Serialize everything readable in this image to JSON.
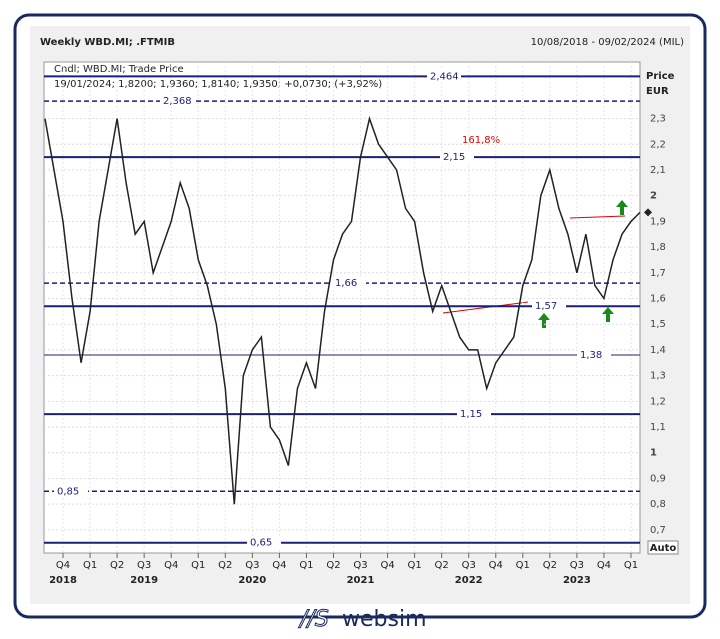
{
  "chart_data": {
    "type": "line",
    "title": "Weekly WBD.MI; .FTMIB",
    "date_range": "10/08/2018 - 09/02/2024 (MIL)",
    "info_line1": "Cndl; WBD.MI; Trade Price",
    "info_line2": "19/01/2024; 1,8200; 1,9360; 1,8140; 1,9350; +0,0730; (+3,92%)",
    "y_label": "Price",
    "y_unit": "EUR",
    "annotation": "161,8%",
    "scale_mode": "Auto",
    "brand": "websim",
    "series": [
      {
        "name": "WBD.MI",
        "color": "#222222",
        "values": [
          2.3,
          2.1,
          1.9,
          1.6,
          1.35,
          1.55,
          1.9,
          2.1,
          2.3,
          2.05,
          1.85,
          1.9,
          1.7,
          1.8,
          1.9,
          2.05,
          1.95,
          1.75,
          1.65,
          1.5,
          1.25,
          0.8,
          1.3,
          1.4,
          1.45,
          1.1,
          1.05,
          0.95,
          1.25,
          1.35,
          1.25,
          1.55,
          1.75,
          1.85,
          1.9,
          2.15,
          2.3,
          2.2,
          2.15,
          2.1,
          1.95,
          1.9,
          1.7,
          1.55,
          1.65,
          1.55,
          1.45,
          1.4,
          1.4,
          1.25,
          1.35,
          1.4,
          1.45,
          1.65,
          1.75,
          2.0,
          2.1,
          1.95,
          1.85,
          1.7,
          1.85,
          1.65,
          1.6,
          1.75,
          1.85,
          1.9,
          1.935
        ]
      }
    ],
    "levels": [
      {
        "value": 2.464,
        "label": "2,464",
        "style": "solid"
      },
      {
        "value": 2.368,
        "label": "2,368",
        "style": "dashed"
      },
      {
        "value": 2.15,
        "label": "2,15",
        "style": "solid"
      },
      {
        "value": 1.66,
        "label": "1,66",
        "style": "dashed"
      },
      {
        "value": 1.57,
        "label": "1,57",
        "style": "solid"
      },
      {
        "value": 1.38,
        "label": "1,38",
        "style": "thin"
      },
      {
        "value": 1.15,
        "label": "1,15",
        "style": "solid"
      },
      {
        "value": 0.85,
        "label": "0,85",
        "style": "dashed"
      },
      {
        "value": 0.65,
        "label": "0,65",
        "style": "solid"
      }
    ],
    "quarters": [
      "Q4",
      "Q1",
      "Q2",
      "Q3",
      "Q4",
      "Q1",
      "Q2",
      "Q3",
      "Q4",
      "Q1",
      "Q2",
      "Q3",
      "Q4",
      "Q1",
      "Q2",
      "Q3",
      "Q4",
      "Q1",
      "Q2",
      "Q3",
      "Q4",
      "Q1"
    ],
    "years": [
      2018,
      2019,
      2020,
      2021,
      2022,
      2023
    ],
    "ylim": [
      0.61,
      2.52
    ],
    "yticks": [
      {
        "value": 0.7,
        "label": "0,7"
      },
      {
        "value": 0.8,
        "label": "0,8"
      },
      {
        "value": 0.9,
        "label": "0,9"
      },
      1,
      {
        "value": 1.1,
        "label": "1,1"
      },
      {
        "value": 1.2,
        "label": "1,2"
      },
      {
        "value": 1.3,
        "label": "1,3"
      },
      {
        "value": 1.4,
        "label": "1,4"
      },
      {
        "value": 1.5,
        "label": "1,5"
      },
      {
        "value": 1.6,
        "label": "1,6"
      },
      {
        "value": 1.7,
        "label": "1,7"
      },
      {
        "value": 1.8,
        "label": "1,8"
      },
      {
        "value": 1.9,
        "label": "1,9"
      },
      2,
      {
        "value": 2.1,
        "label": "2,1"
      },
      {
        "value": 2.2,
        "label": "2,2"
      },
      {
        "value": 2.3,
        "label": "2,3"
      }
    ],
    "grid": true
  }
}
